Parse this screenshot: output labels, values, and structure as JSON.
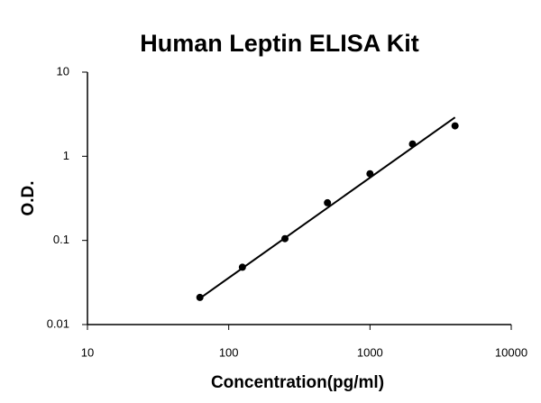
{
  "chart_data": {
    "type": "scatter",
    "title": "Human Leptin ELISA Kit",
    "x_label": "Concentration(pg/ml)",
    "y_label": "O.D.",
    "x_log": true,
    "y_log": true,
    "xlim": [
      10,
      10000
    ],
    "ylim": [
      0.01,
      10
    ],
    "xticks": [
      10,
      100,
      1000,
      10000
    ],
    "yticks": [
      0.01,
      0.1,
      1,
      10
    ],
    "color": "#000000",
    "x": [
      62.5,
      125,
      250,
      500,
      1000,
      2000,
      4000
    ],
    "values": [
      0.021,
      0.048,
      0.105,
      0.28,
      0.62,
      1.4,
      2.3
    ],
    "fit": {
      "x": [
        62.5,
        4000
      ],
      "values": [
        0.0205,
        2.9
      ]
    }
  }
}
